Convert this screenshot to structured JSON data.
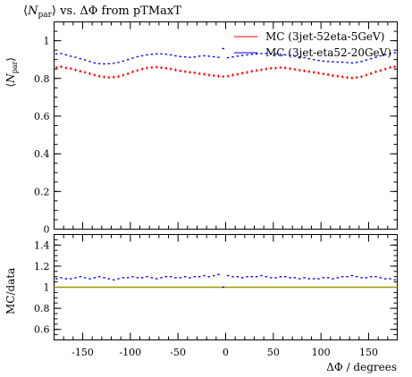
{
  "chart_data": {
    "type": "scatter",
    "title": "⟨N_par⟩ vs. ΔΦ from pTMaxT",
    "title_parts": [
      "⟨",
      "N",
      "par",
      "⟩ vs. ΔΦ from pTMaxT"
    ],
    "xlabel": "ΔΦ / degrees",
    "xlim": [
      -180,
      180
    ],
    "xticks": [
      -150,
      -100,
      -50,
      0,
      50,
      100,
      150
    ],
    "x_tick_labels": [
      "-150",
      "-100",
      "-50",
      "0",
      "50",
      "100",
      "150"
    ],
    "main": {
      "ylabel_parts": [
        "⟨",
        "N",
        "par",
        "⟩"
      ],
      "ylim": [
        0,
        1.1
      ],
      "yticks": [
        0,
        0.2,
        0.4,
        0.6,
        0.8,
        1
      ],
      "y_tick_labels": [
        "0",
        "0.2",
        "0.4",
        "0.6",
        "0.8",
        "1"
      ],
      "series": [
        {
          "name": "MC (3jet-52eta-5GeV)",
          "color": "#ff0000",
          "x": [
            -177.5,
            -172.5,
            -167.5,
            -162.5,
            -157.5,
            -152.5,
            -147.5,
            -142.5,
            -137.5,
            -132.5,
            -127.5,
            -122.5,
            -117.5,
            -112.5,
            -107.5,
            -102.5,
            -97.5,
            -92.5,
            -87.5,
            -82.5,
            -77.5,
            -72.5,
            -67.5,
            -62.5,
            -57.5,
            -52.5,
            -47.5,
            -42.5,
            -37.5,
            -32.5,
            -27.5,
            -22.5,
            -17.5,
            -12.5,
            -7.5,
            -2.5,
            2.5,
            7.5,
            12.5,
            17.5,
            22.5,
            27.5,
            32.5,
            37.5,
            42.5,
            47.5,
            52.5,
            57.5,
            62.5,
            67.5,
            72.5,
            77.5,
            82.5,
            87.5,
            92.5,
            97.5,
            102.5,
            107.5,
            112.5,
            117.5,
            122.5,
            127.5,
            132.5,
            137.5,
            142.5,
            147.5,
            152.5,
            157.5,
            162.5,
            167.5,
            172.5,
            177.5
          ],
          "values": [
            0.858,
            0.862,
            0.856,
            0.852,
            0.845,
            0.838,
            0.832,
            0.825,
            0.818,
            0.812,
            0.808,
            0.805,
            0.807,
            0.81,
            0.818,
            0.825,
            0.835,
            0.842,
            0.85,
            0.855,
            0.858,
            0.86,
            0.857,
            0.854,
            0.85,
            0.845,
            0.84,
            0.836,
            0.832,
            0.83,
            0.825,
            0.822,
            0.818,
            0.815,
            0.812,
            0.81,
            0.812,
            0.818,
            0.822,
            0.828,
            0.832,
            0.838,
            0.842,
            0.846,
            0.85,
            0.854,
            0.855,
            0.858,
            0.856,
            0.852,
            0.848,
            0.844,
            0.84,
            0.836,
            0.832,
            0.828,
            0.824,
            0.82,
            0.815,
            0.812,
            0.808,
            0.805,
            0.802,
            0.805,
            0.81,
            0.818,
            0.826,
            0.835,
            0.842,
            0.85,
            0.858,
            0.862
          ]
        },
        {
          "name": "MC (3jet-eta52-20GeV)",
          "color": "#0000ff",
          "x": [
            -177.5,
            -172.5,
            -167.5,
            -162.5,
            -157.5,
            -152.5,
            -147.5,
            -142.5,
            -137.5,
            -132.5,
            -127.5,
            -122.5,
            -117.5,
            -112.5,
            -107.5,
            -102.5,
            -97.5,
            -92.5,
            -87.5,
            -82.5,
            -77.5,
            -72.5,
            -67.5,
            -62.5,
            -57.5,
            -52.5,
            -47.5,
            -42.5,
            -37.5,
            -32.5,
            -27.5,
            -22.5,
            -17.5,
            -12.5,
            -7.5,
            -2.5,
            2.5,
            7.5,
            12.5,
            17.5,
            22.5,
            27.5,
            32.5,
            37.5,
            42.5,
            47.5,
            52.5,
            57.5,
            62.5,
            67.5,
            72.5,
            77.5,
            82.5,
            87.5,
            92.5,
            97.5,
            102.5,
            107.5,
            112.5,
            117.5,
            122.5,
            127.5,
            132.5,
            137.5,
            142.5,
            147.5,
            152.5,
            157.5,
            162.5,
            167.5,
            172.5,
            177.5
          ],
          "values": [
            0.93,
            0.932,
            0.925,
            0.918,
            0.912,
            0.905,
            0.898,
            0.89,
            0.882,
            0.878,
            0.877,
            0.878,
            0.88,
            0.885,
            0.892,
            0.9,
            0.908,
            0.915,
            0.92,
            0.925,
            0.928,
            0.93,
            0.93,
            0.928,
            0.925,
            0.92,
            0.916,
            0.914,
            0.912,
            0.914,
            0.918,
            0.92,
            0.918,
            0.915,
            0.912,
            0.958,
            0.91,
            0.914,
            0.918,
            0.922,
            0.925,
            0.928,
            0.93,
            0.932,
            0.933,
            0.932,
            0.93,
            0.928,
            0.925,
            0.922,
            0.918,
            0.914,
            0.91,
            0.905,
            0.9,
            0.895,
            0.892,
            0.89,
            0.888,
            0.887,
            0.886,
            0.884,
            0.882,
            0.885,
            0.89,
            0.898,
            0.905,
            0.912,
            0.92,
            0.926,
            0.932,
            0.936
          ]
        }
      ]
    },
    "ratio": {
      "ylabel": "MC/data",
      "ylim": [
        0.5,
        1.5
      ],
      "yticks": [
        0.6,
        0.8,
        1,
        1.2,
        1.4
      ],
      "y_tick_labels": [
        "0.6",
        "0.8",
        "1",
        "1.2",
        "1.4"
      ],
      "reference_line": {
        "value": 1.0,
        "color": "#9a9a00"
      },
      "series": [
        {
          "name": "MC (3jet-eta52-20GeV)",
          "color": "#0000ff",
          "values": [
            1.08,
            1.09,
            1.08,
            1.08,
            1.09,
            1.1,
            1.09,
            1.08,
            1.09,
            1.1,
            1.09,
            1.08,
            1.07,
            1.08,
            1.09,
            1.09,
            1.1,
            1.09,
            1.09,
            1.1,
            1.09,
            1.08,
            1.09,
            1.1,
            1.1,
            1.09,
            1.09,
            1.1,
            1.09,
            1.1,
            1.1,
            1.11,
            1.1,
            1.11,
            1.12,
            1.0,
            1.11,
            1.1,
            1.1,
            1.09,
            1.1,
            1.1,
            1.1,
            1.11,
            1.1,
            1.09,
            1.09,
            1.1,
            1.1,
            1.09,
            1.09,
            1.08,
            1.09,
            1.08,
            1.08,
            1.08,
            1.09,
            1.09,
            1.08,
            1.09,
            1.1,
            1.1,
            1.11,
            1.1,
            1.09,
            1.09,
            1.1,
            1.1,
            1.09,
            1.08,
            1.08,
            1.07
          ]
        }
      ]
    },
    "legend_position": "top-right",
    "grid": false
  }
}
